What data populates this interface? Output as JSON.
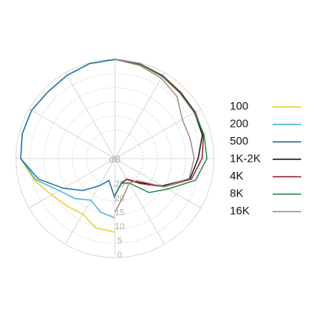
{
  "chart_data": {
    "type": "polar",
    "axis_label": "dB",
    "rlim": [
      35,
      0
    ],
    "rticks": [
      0,
      5,
      10,
      15,
      20,
      25
    ],
    "theta": [
      0,
      15,
      30,
      45,
      60,
      75,
      90,
      105,
      120,
      135,
      150,
      165,
      180,
      195,
      210,
      225,
      240,
      255,
      270,
      285,
      300,
      315,
      330,
      345,
      360
    ],
    "series": [
      {
        "name": "100",
        "color": "#e8d21f",
        "values": [
          null,
          null,
          null,
          null,
          null,
          null,
          null,
          null,
          null,
          null,
          null,
          null,
          9,
          9.5,
          12.3,
          11.2,
          9.2,
          5.5,
          1.7,
          1.1,
          1,
          1.6,
          1.1,
          0.3,
          0
        ]
      },
      {
        "name": "200",
        "color": "#3db6de",
        "values": [
          null,
          null,
          null,
          null,
          null,
          null,
          null,
          null,
          null,
          null,
          null,
          null,
          14,
          15.4,
          18,
          15,
          12.3,
          6,
          1.7,
          1.1,
          1,
          1.6,
          1.1,
          0.3,
          0
        ]
      },
      {
        "name": "500",
        "color": "#1f6fa8",
        "values": [
          null,
          null,
          null,
          null,
          null,
          null,
          null,
          null,
          null,
          null,
          null,
          null,
          21,
          26.9,
          23.8,
          19,
          14,
          7,
          1.7,
          1.1,
          1,
          1.6,
          1.1,
          0.3,
          0
        ]
      },
      {
        "name": "1K-2K",
        "color": "#111111",
        "values": [
          0,
          0.5,
          1.4,
          2.2,
          2.5,
          3,
          5.6,
          7.5,
          15.6,
          23,
          26.6,
          26,
          22,
          null,
          null,
          null,
          null,
          null,
          null,
          null,
          null,
          null,
          null,
          null,
          null
        ]
      },
      {
        "name": "4K",
        "color": "#a11c2e",
        "values": [
          0,
          0.4,
          1.2,
          2,
          2.2,
          2.6,
          4.2,
          7,
          15,
          22.5,
          26.5,
          26,
          22,
          null,
          null,
          null,
          null,
          null,
          null,
          null,
          null,
          null,
          null,
          null,
          null
        ]
      },
      {
        "name": "8K",
        "color": "#1e8a4c",
        "values": [
          0,
          0.6,
          1.5,
          2.4,
          2.6,
          2.4,
          2.5,
          5.5,
          13.4,
          18,
          25,
          26,
          22,
          null,
          null,
          null,
          null,
          null,
          null,
          null,
          null,
          null,
          null,
          null,
          null
        ]
      },
      {
        "name": "16K",
        "color": "#a38a7a",
        "values": [
          0,
          1,
          2.2,
          4,
          7.5,
          7.5,
          7,
          7.8,
          15,
          24,
          25,
          22,
          16,
          null,
          null,
          null,
          null,
          null,
          null,
          null,
          null,
          null,
          null,
          null,
          null
        ]
      }
    ]
  }
}
